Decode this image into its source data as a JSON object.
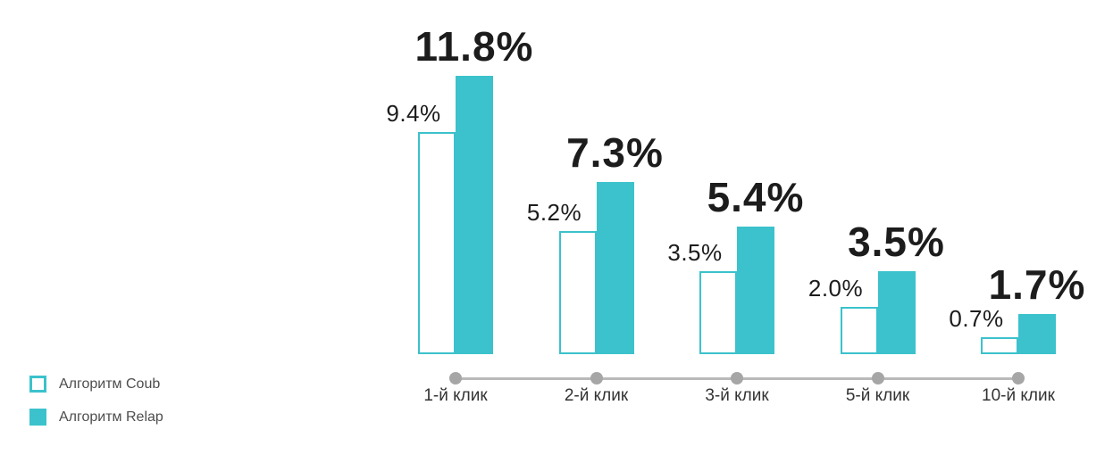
{
  "chart_data": {
    "type": "bar",
    "title": "",
    "categories": [
      "1-й клик",
      "2-й клик",
      "3-й клик",
      "5-й клик",
      "10-й клик"
    ],
    "series": [
      {
        "name": "Алгоритм Coub",
        "style": "outline",
        "values": [
          9.4,
          5.2,
          3.5,
          2.0,
          0.7
        ],
        "value_labels": [
          "9.4%",
          "5.2%",
          "3.5%",
          "2.0%",
          "0.7%"
        ]
      },
      {
        "name": "Алгоритм Relap",
        "style": "fill",
        "values": [
          11.8,
          7.3,
          5.4,
          3.5,
          1.7
        ],
        "value_labels": [
          "11.8%",
          "7.3%",
          "5.4%",
          "3.5%",
          "1.7%"
        ]
      }
    ],
    "ylabel": "",
    "xlabel": "",
    "ylim": [
      0,
      12.5
    ],
    "grid": false,
    "value_labels_shown": true,
    "legend_position": "bottom-left",
    "x_axis_style": "line-with-dots"
  },
  "legend": {
    "items": [
      {
        "label": "Алгоритм Coub",
        "swatch": "outline"
      },
      {
        "label": "Алгоритм Relap",
        "swatch": "fill"
      }
    ]
  },
  "colors": {
    "accent": "#3bc2cc",
    "axis_line": "#b9b9b9",
    "axis_dot": "#a6a6a6",
    "label_text": "#1c1c1c",
    "category_text": "#333333",
    "legend_text": "#4d4d4d",
    "background": "#ffffff"
  }
}
